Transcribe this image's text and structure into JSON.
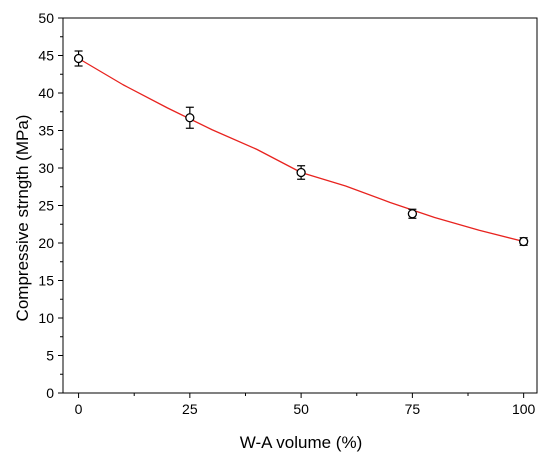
{
  "chart_data": {
    "type": "scatter",
    "title": "",
    "xlabel": "W-A volume (%)",
    "ylabel": "Compressive strngth (MPa)",
    "xlim": [
      -3.5,
      103
    ],
    "ylim": [
      0,
      50
    ],
    "x_ticks": [
      0,
      25,
      50,
      75,
      100
    ],
    "y_ticks": [
      0,
      5,
      10,
      15,
      20,
      25,
      30,
      35,
      40,
      45,
      50
    ],
    "grid": false,
    "legend": "none",
    "marker": "open-circle",
    "colors": {
      "points": "#000000",
      "fit_line": "#e8231f",
      "axes": "#000000"
    },
    "series": [
      {
        "x": [
          0,
          25,
          50,
          75,
          100
        ],
        "y": [
          44.6,
          36.7,
          29.4,
          23.9,
          20.2
        ],
        "error": [
          1.0,
          1.4,
          0.9,
          0.6,
          0.5
        ]
      }
    ],
    "fit": {
      "type": "exponential",
      "color": "#e8231f",
      "points": [
        [
          0,
          44.6
        ],
        [
          10,
          41.1
        ],
        [
          20,
          38.0
        ],
        [
          30,
          35.1
        ],
        [
          40,
          32.5
        ],
        [
          50,
          29.4
        ],
        [
          60,
          27.6
        ],
        [
          70,
          25.4
        ],
        [
          80,
          23.4
        ],
        [
          90,
          21.7
        ],
        [
          100,
          20.2
        ]
      ]
    }
  }
}
